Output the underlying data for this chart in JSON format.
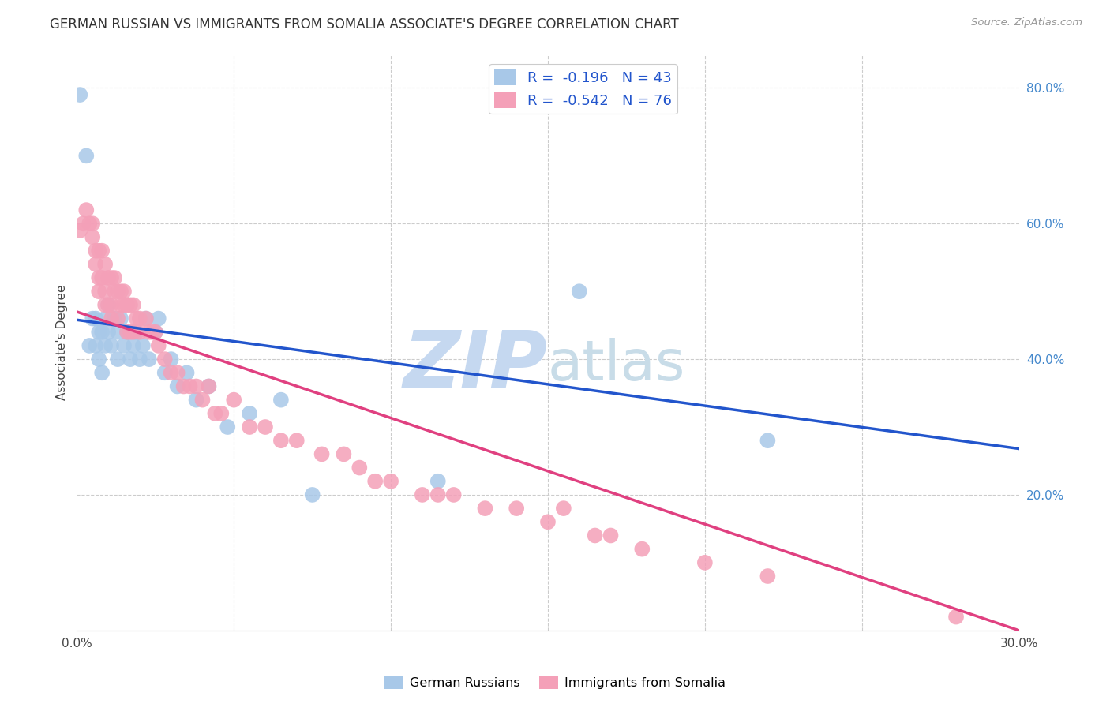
{
  "title": "GERMAN RUSSIAN VS IMMIGRANTS FROM SOMALIA ASSOCIATE'S DEGREE CORRELATION CHART",
  "source": "Source: ZipAtlas.com",
  "ylabel": "Associate's Degree",
  "xlabel": "",
  "watermark_zip": "ZIP",
  "watermark_atlas": "atlas",
  "xlim": [
    0.0,
    0.3
  ],
  "ylim": [
    0.0,
    0.85
  ],
  "blue_R": -0.196,
  "blue_N": 43,
  "pink_R": -0.542,
  "pink_N": 76,
  "blue_color": "#a8c8e8",
  "pink_color": "#f4a0b8",
  "blue_line_color": "#2255cc",
  "pink_line_color": "#e04080",
  "legend_label_blue": "German Russians",
  "legend_label_pink": "Immigrants from Somalia",
  "blue_scatter_x": [
    0.001,
    0.003,
    0.004,
    0.005,
    0.006,
    0.006,
    0.007,
    0.007,
    0.008,
    0.008,
    0.009,
    0.009,
    0.01,
    0.01,
    0.011,
    0.012,
    0.013,
    0.013,
    0.014,
    0.015,
    0.016,
    0.017,
    0.018,
    0.019,
    0.02,
    0.021,
    0.022,
    0.023,
    0.025,
    0.026,
    0.028,
    0.03,
    0.032,
    0.035,
    0.038,
    0.042,
    0.048,
    0.055,
    0.065,
    0.075,
    0.115,
    0.16,
    0.22
  ],
  "blue_scatter_y": [
    0.79,
    0.7,
    0.42,
    0.46,
    0.46,
    0.42,
    0.44,
    0.4,
    0.44,
    0.38,
    0.46,
    0.42,
    0.48,
    0.44,
    0.42,
    0.46,
    0.44,
    0.4,
    0.46,
    0.42,
    0.44,
    0.4,
    0.42,
    0.44,
    0.4,
    0.42,
    0.46,
    0.4,
    0.44,
    0.46,
    0.38,
    0.4,
    0.36,
    0.38,
    0.34,
    0.36,
    0.3,
    0.32,
    0.34,
    0.2,
    0.22,
    0.5,
    0.28
  ],
  "pink_scatter_x": [
    0.001,
    0.002,
    0.003,
    0.004,
    0.005,
    0.005,
    0.006,
    0.006,
    0.007,
    0.007,
    0.007,
    0.008,
    0.008,
    0.009,
    0.009,
    0.009,
    0.01,
    0.01,
    0.011,
    0.011,
    0.011,
    0.012,
    0.012,
    0.013,
    0.013,
    0.014,
    0.014,
    0.015,
    0.015,
    0.016,
    0.016,
    0.017,
    0.017,
    0.018,
    0.018,
    0.019,
    0.02,
    0.02,
    0.022,
    0.023,
    0.024,
    0.025,
    0.026,
    0.028,
    0.03,
    0.032,
    0.034,
    0.036,
    0.038,
    0.04,
    0.042,
    0.044,
    0.046,
    0.05,
    0.055,
    0.06,
    0.065,
    0.07,
    0.078,
    0.085,
    0.09,
    0.095,
    0.1,
    0.11,
    0.115,
    0.12,
    0.13,
    0.14,
    0.15,
    0.155,
    0.165,
    0.17,
    0.18,
    0.2,
    0.22,
    0.28
  ],
  "pink_scatter_y": [
    0.59,
    0.6,
    0.62,
    0.6,
    0.58,
    0.6,
    0.56,
    0.54,
    0.56,
    0.52,
    0.5,
    0.56,
    0.52,
    0.54,
    0.5,
    0.48,
    0.52,
    0.48,
    0.52,
    0.48,
    0.46,
    0.52,
    0.5,
    0.5,
    0.46,
    0.5,
    0.48,
    0.5,
    0.48,
    0.48,
    0.44,
    0.48,
    0.44,
    0.48,
    0.44,
    0.46,
    0.46,
    0.44,
    0.46,
    0.44,
    0.44,
    0.44,
    0.42,
    0.4,
    0.38,
    0.38,
    0.36,
    0.36,
    0.36,
    0.34,
    0.36,
    0.32,
    0.32,
    0.34,
    0.3,
    0.3,
    0.28,
    0.28,
    0.26,
    0.26,
    0.24,
    0.22,
    0.22,
    0.2,
    0.2,
    0.2,
    0.18,
    0.18,
    0.16,
    0.18,
    0.14,
    0.14,
    0.12,
    0.1,
    0.08,
    0.02
  ],
  "blue_line_x": [
    0.0,
    0.3
  ],
  "blue_line_y": [
    0.458,
    0.268
  ],
  "pink_line_x": [
    0.0,
    0.3
  ],
  "pink_line_y": [
    0.47,
    0.0
  ],
  "bg_color": "#ffffff",
  "grid_color": "#cccccc",
  "title_color": "#333333",
  "watermark_color_zip": "#c5d8f0",
  "watermark_color_atlas": "#c8dce8"
}
